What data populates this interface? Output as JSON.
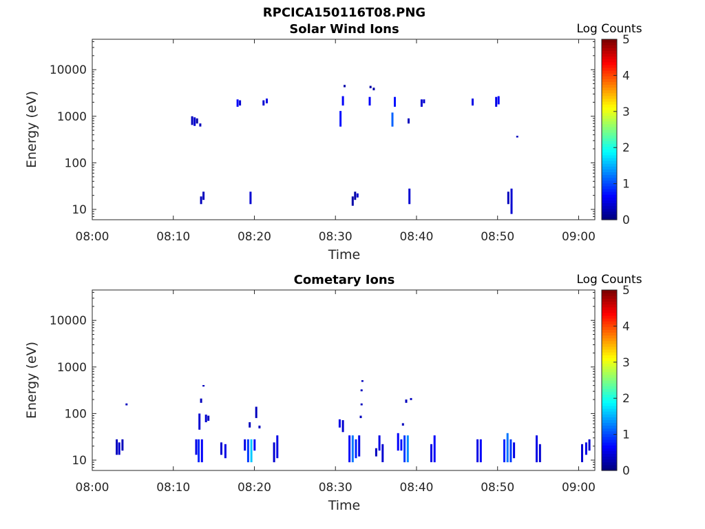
{
  "title": "RPCICA150116T08.PNG",
  "panels_colorbar": {
    "label": "Log Counts",
    "ticks": [
      "0",
      "1",
      "2",
      "3",
      "4",
      "5"
    ],
    "range": [
      0,
      5
    ],
    "colormap": "jet"
  },
  "chart_data": [
    {
      "type": "heatmap",
      "title": "Solar Wind Ions",
      "xlabel": "Time",
      "ylabel": "Energy (eV)",
      "x_range_minutes": [
        0,
        62
      ],
      "x_ticks": [
        "08:00",
        "08:10",
        "08:20",
        "08:30",
        "08:40",
        "08:50",
        "09:00"
      ],
      "y_scale": "log",
      "ylim": [
        6,
        45000
      ],
      "y_ticks": [
        "10",
        "100",
        "1000",
        "10000"
      ],
      "colorbar_label": "Log Counts",
      "cells": [
        [
          12.2,
          650,
          1000,
          0.3
        ],
        [
          12.5,
          620,
          950,
          0.4
        ],
        [
          12.8,
          700,
          900,
          0.2
        ],
        [
          13.2,
          600,
          700,
          0.3
        ],
        [
          13.3,
          13,
          19,
          0.3
        ],
        [
          13.6,
          16,
          24,
          0.3
        ],
        [
          17.8,
          1600,
          2300,
          0.6
        ],
        [
          18.1,
          1700,
          2200,
          0.4
        ],
        [
          19.4,
          13,
          24,
          0.4
        ],
        [
          21.0,
          1700,
          2200,
          0.4
        ],
        [
          21.4,
          1900,
          2400,
          0.5
        ],
        [
          30.5,
          600,
          1300,
          0.7
        ],
        [
          30.8,
          1700,
          2700,
          0.6
        ],
        [
          31.0,
          4200,
          4700,
          0.2
        ],
        [
          32.0,
          12,
          19,
          0.2
        ],
        [
          32.3,
          16,
          24,
          0.2
        ],
        [
          32.6,
          18,
          22,
          0.4
        ],
        [
          34.1,
          1700,
          2600,
          0.6
        ],
        [
          34.2,
          4000,
          4500,
          0.2
        ],
        [
          34.6,
          3600,
          4100,
          0.2
        ],
        [
          36.9,
          600,
          1200,
          1.1
        ],
        [
          37.2,
          1600,
          2600,
          0.7
        ],
        [
          38.9,
          700,
          900,
          0.3
        ],
        [
          39.0,
          13,
          28,
          0.4
        ],
        [
          40.5,
          1600,
          2300,
          0.4
        ],
        [
          40.8,
          1900,
          2300,
          0.4
        ],
        [
          46.8,
          1700,
          2400,
          0.5
        ],
        [
          49.7,
          1600,
          2600,
          0.5
        ],
        [
          50.0,
          1800,
          2700,
          0.6
        ],
        [
          51.2,
          13,
          24,
          0.3
        ],
        [
          51.6,
          8,
          28,
          0.4
        ],
        [
          52.3,
          350,
          380,
          0.3
        ]
      ]
    },
    {
      "type": "heatmap",
      "title": "Cometary Ions",
      "xlabel": "Time",
      "ylabel": "Energy (eV)",
      "x_range_minutes": [
        0,
        62
      ],
      "x_ticks": [
        "08:00",
        "08:10",
        "08:20",
        "08:30",
        "08:40",
        "08:50",
        "09:00"
      ],
      "y_scale": "log",
      "ylim": [
        6,
        45000
      ],
      "y_ticks": [
        "10",
        "100",
        "1000",
        "10000"
      ],
      "colorbar_label": "Log Counts",
      "cells": [
        [
          2.9,
          13,
          28,
          0.3
        ],
        [
          3.2,
          13,
          24,
          0.4
        ],
        [
          3.6,
          16,
          28,
          0.3
        ],
        [
          4.1,
          150,
          165,
          0.3
        ],
        [
          12.7,
          13,
          28,
          0.5
        ],
        [
          13.0,
          9,
          28,
          0.8
        ],
        [
          13.4,
          9,
          28,
          0.6
        ],
        [
          13.1,
          45,
          100,
          0.4
        ],
        [
          13.3,
          170,
          210,
          0.3
        ],
        [
          13.6,
          380,
          410,
          0.3
        ],
        [
          13.9,
          65,
          95,
          0.4
        ],
        [
          14.2,
          70,
          90,
          0.3
        ],
        [
          15.8,
          13,
          24,
          0.4
        ],
        [
          16.3,
          11,
          22,
          0.5
        ],
        [
          18.7,
          16,
          28,
          0.5
        ],
        [
          19.1,
          9,
          28,
          0.9
        ],
        [
          19.5,
          9,
          28,
          1.6
        ],
        [
          19.9,
          16,
          28,
          0.6
        ],
        [
          19.3,
          50,
          65,
          0.3
        ],
        [
          20.1,
          80,
          140,
          0.3
        ],
        [
          20.5,
          48,
          55,
          0.3
        ],
        [
          22.3,
          9,
          24,
          0.4
        ],
        [
          22.7,
          11,
          34,
          0.5
        ],
        [
          30.4,
          50,
          75,
          0.5
        ],
        [
          30.8,
          40,
          72,
          0.4
        ],
        [
          31.6,
          9,
          34,
          0.6
        ],
        [
          32.0,
          9,
          34,
          1.2
        ],
        [
          32.4,
          11,
          28,
          0.8
        ],
        [
          32.8,
          12,
          34,
          0.5
        ],
        [
          33.0,
          80,
          90,
          0.3
        ],
        [
          33.1,
          150,
          165,
          0.3
        ],
        [
          33.2,
          480,
          520,
          0.3
        ],
        [
          33.1,
          300,
          330,
          0.3
        ],
        [
          34.9,
          12,
          18,
          0.3
        ],
        [
          35.3,
          16,
          34,
          0.5
        ],
        [
          35.7,
          9,
          22,
          0.4
        ],
        [
          37.6,
          16,
          38,
          0.6
        ],
        [
          38.0,
          16,
          28,
          0.7
        ],
        [
          38.4,
          9,
          34,
          0.9
        ],
        [
          38.8,
          9,
          34,
          1.3
        ],
        [
          38.2,
          55,
          62,
          0.3
        ],
        [
          38.6,
          170,
          200,
          0.3
        ],
        [
          39.2,
          195,
          215,
          0.3
        ],
        [
          41.7,
          9,
          22,
          0.5
        ],
        [
          42.1,
          9,
          34,
          0.6
        ],
        [
          47.4,
          9,
          28,
          0.5
        ],
        [
          47.8,
          9,
          28,
          0.6
        ],
        [
          50.7,
          9,
          28,
          0.8
        ],
        [
          51.1,
          9,
          38,
          1.2
        ],
        [
          51.5,
          9,
          28,
          0.9
        ],
        [
          51.9,
          11,
          24,
          0.5
        ],
        [
          54.7,
          9,
          34,
          0.5
        ],
        [
          55.1,
          9,
          22,
          0.4
        ],
        [
          60.3,
          9,
          22,
          0.4
        ],
        [
          60.8,
          13,
          24,
          0.5
        ],
        [
          61.2,
          16,
          28,
          0.4
        ]
      ]
    }
  ]
}
